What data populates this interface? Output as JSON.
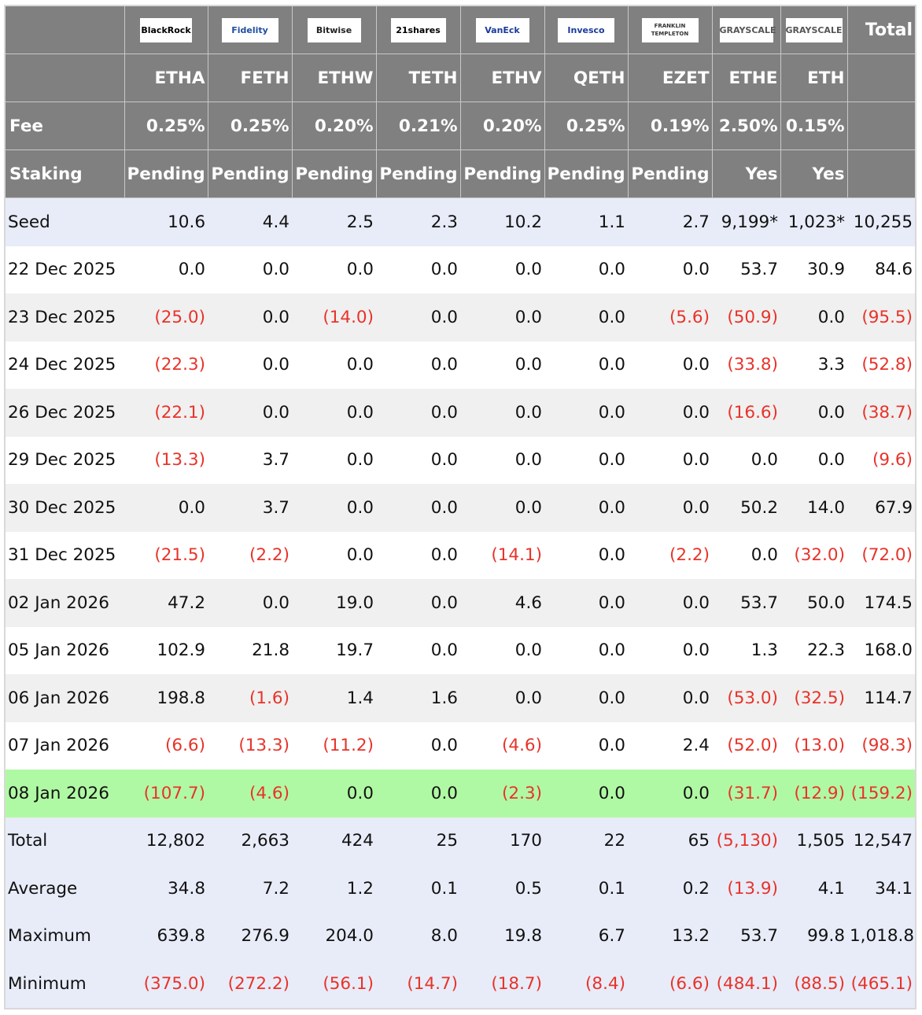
{
  "logos": [
    {
      "text": "BlackRock",
      "color": "#000000"
    },
    {
      "text": "Fidelity",
      "color": "#1f4fa0"
    },
    {
      "text": "Bitwise",
      "color": "#222222"
    },
    {
      "text": "21shares",
      "color": "#000000"
    },
    {
      "text": "VanEck",
      "color": "#1a3a9a"
    },
    {
      "text": "Invesco",
      "color": "#1a3a9a"
    },
    {
      "text": "FRANKLIN TEMPLETON",
      "color": "#333333"
    },
    {
      "text": "GRAYSCALE",
      "color": "#555555"
    },
    {
      "text": "GRAYSCALE",
      "color": "#555555"
    }
  ],
  "header": {
    "total_label": "Total",
    "tickers": [
      "ETHA",
      "FETH",
      "ETHW",
      "TETH",
      "ETHV",
      "QETH",
      "EZET",
      "ETHE",
      "ETH"
    ],
    "fee_label": "Fee",
    "fees": [
      "0.25%",
      "0.25%",
      "0.20%",
      "0.21%",
      "0.20%",
      "0.25%",
      "0.19%",
      "2.50%",
      "0.15%"
    ],
    "staking_label": "Staking",
    "staking": [
      "Pending",
      "Pending",
      "Pending",
      "Pending",
      "Pending",
      "Pending",
      "Pending",
      "Yes",
      "Yes"
    ]
  },
  "rows": [
    {
      "label": "Seed",
      "type": "seed",
      "values": [
        "10.6",
        "4.4",
        "2.5",
        "2.3",
        "10.2",
        "1.1",
        "2.7",
        "9,199*",
        "1,023*",
        "10,255"
      ]
    },
    {
      "label": "22 Dec 2025",
      "type": "odd",
      "values": [
        "0.0",
        "0.0",
        "0.0",
        "0.0",
        "0.0",
        "0.0",
        "0.0",
        "53.7",
        "30.9",
        "84.6"
      ]
    },
    {
      "label": "23 Dec 2025",
      "type": "even",
      "values": [
        "(25.0)",
        "0.0",
        "(14.0)",
        "0.0",
        "0.0",
        "0.0",
        "(5.6)",
        "(50.9)",
        "0.0",
        "(95.5)"
      ]
    },
    {
      "label": "24 Dec 2025",
      "type": "odd",
      "values": [
        "(22.3)",
        "0.0",
        "0.0",
        "0.0",
        "0.0",
        "0.0",
        "0.0",
        "(33.8)",
        "3.3",
        "(52.8)"
      ]
    },
    {
      "label": "26 Dec 2025",
      "type": "even",
      "values": [
        "(22.1)",
        "0.0",
        "0.0",
        "0.0",
        "0.0",
        "0.0",
        "0.0",
        "(16.6)",
        "0.0",
        "(38.7)"
      ]
    },
    {
      "label": "29 Dec 2025",
      "type": "odd",
      "values": [
        "(13.3)",
        "3.7",
        "0.0",
        "0.0",
        "0.0",
        "0.0",
        "0.0",
        "0.0",
        "0.0",
        "(9.6)"
      ]
    },
    {
      "label": "30 Dec 2025",
      "type": "even",
      "values": [
        "0.0",
        "3.7",
        "0.0",
        "0.0",
        "0.0",
        "0.0",
        "0.0",
        "50.2",
        "14.0",
        "67.9"
      ]
    },
    {
      "label": "31 Dec 2025",
      "type": "odd",
      "values": [
        "(21.5)",
        "(2.2)",
        "0.0",
        "0.0",
        "(14.1)",
        "0.0",
        "(2.2)",
        "0.0",
        "(32.0)",
        "(72.0)"
      ]
    },
    {
      "label": "02 Jan 2026",
      "type": "even",
      "values": [
        "47.2",
        "0.0",
        "19.0",
        "0.0",
        "4.6",
        "0.0",
        "0.0",
        "53.7",
        "50.0",
        "174.5"
      ]
    },
    {
      "label": "05 Jan 2026",
      "type": "odd",
      "values": [
        "102.9",
        "21.8",
        "19.7",
        "0.0",
        "0.0",
        "0.0",
        "0.0",
        "1.3",
        "22.3",
        "168.0"
      ]
    },
    {
      "label": "06 Jan 2026",
      "type": "even",
      "values": [
        "198.8",
        "(1.6)",
        "1.4",
        "1.6",
        "0.0",
        "0.0",
        "0.0",
        "(53.0)",
        "(32.5)",
        "114.7"
      ]
    },
    {
      "label": "07 Jan 2026",
      "type": "odd",
      "values": [
        "(6.6)",
        "(13.3)",
        "(11.2)",
        "0.0",
        "(4.6)",
        "0.0",
        "2.4",
        "(52.0)",
        "(13.0)",
        "(98.3)"
      ]
    },
    {
      "label": "08 Jan 2026",
      "type": "hl",
      "values": [
        "(107.7)",
        "(4.6)",
        "0.0",
        "0.0",
        "(2.3)",
        "0.0",
        "0.0",
        "(31.7)",
        "(12.9)",
        "(159.2)"
      ]
    },
    {
      "label": "Total",
      "type": "summary",
      "values": [
        "12,802",
        "2,663",
        "424",
        "25",
        "170",
        "22",
        "65",
        "(5,130)",
        "1,505",
        "12,547"
      ]
    },
    {
      "label": "Average",
      "type": "summary",
      "values": [
        "34.8",
        "7.2",
        "1.2",
        "0.1",
        "0.5",
        "0.1",
        "0.2",
        "(13.9)",
        "4.1",
        "34.1"
      ]
    },
    {
      "label": "Maximum",
      "type": "summary",
      "values": [
        "639.8",
        "276.9",
        "204.0",
        "8.0",
        "19.8",
        "6.7",
        "13.2",
        "53.7",
        "99.8",
        "1,018.8"
      ]
    },
    {
      "label": "Minimum",
      "type": "summary",
      "values": [
        "(375.0)",
        "(272.2)",
        "(56.1)",
        "(14.7)",
        "(18.7)",
        "(8.4)",
        "(6.6)",
        "(484.1)",
        "(88.5)",
        "(465.1)"
      ]
    }
  ],
  "colors": {
    "header_bg": "#808080",
    "negative": "#e8332a",
    "highlight": "#b0f9a4",
    "summary_bg": "#e8ecf8"
  }
}
